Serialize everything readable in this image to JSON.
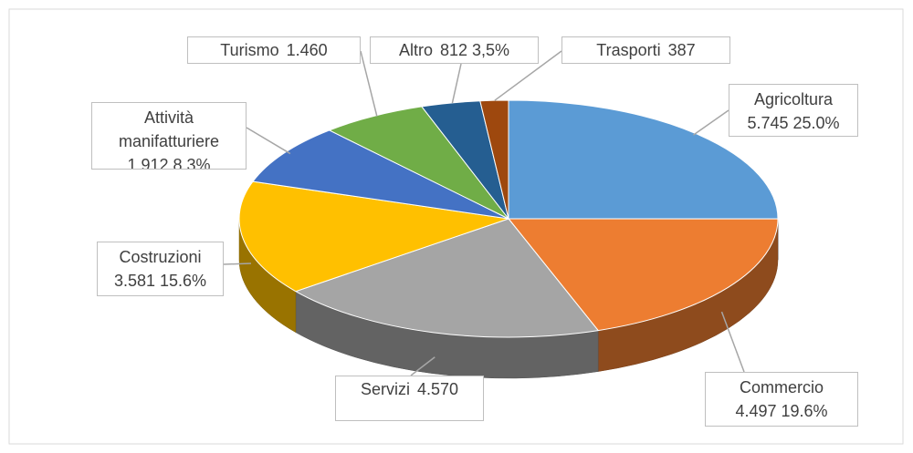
{
  "chart_data": {
    "type": "pie3d",
    "categories": [
      "Agricoltura",
      "Commercio",
      "Servizi",
      "Costruzioni",
      "Attività manifatturiere",
      "Turismo",
      "Altro",
      "Trasporti"
    ],
    "values": [
      5745,
      4497,
      4570,
      3581,
      1912,
      1460,
      812,
      387
    ],
    "value_labels": [
      "5.745  25.0%",
      "4.497  19.6%",
      "4.570",
      "3.581  15.6%",
      "1.912  8.3%",
      "1.460",
      "812  3,5%",
      "387"
    ],
    "colors": [
      "#5b9bd5",
      "#ed7d31",
      "#a5a5a5",
      "#ffc000",
      "#4472c4",
      "#70ad47",
      "#255e91",
      "#9e480e"
    ]
  }
}
